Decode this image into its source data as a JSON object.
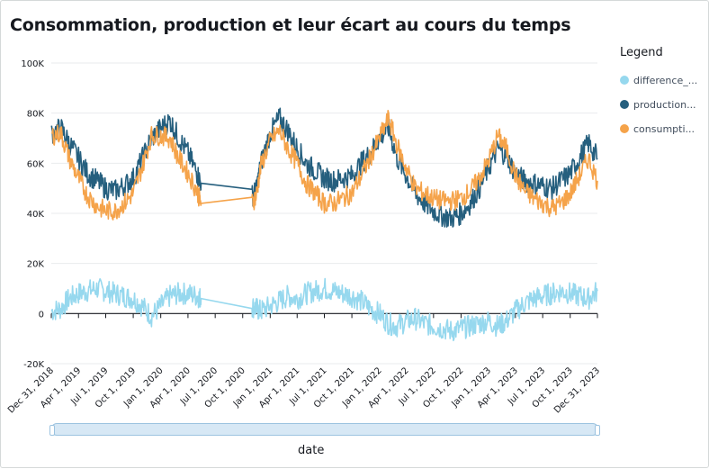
{
  "chart_data": {
    "type": "line",
    "title": "Consommation, production et leur écart au cours du temps",
    "xlabel": "date",
    "ylabel": "",
    "ylim": [
      -20000,
      100000
    ],
    "yticks": [
      "100K",
      "80K",
      "60K",
      "40K",
      "20K",
      "0",
      "-20K"
    ],
    "ytick_values": [
      100000,
      80000,
      60000,
      40000,
      20000,
      0,
      -20000
    ],
    "x_range": [
      "2018-12-31",
      "2023-12-31"
    ],
    "xticks": [
      "Dec 31, 2018",
      "Apr 1, 2019",
      "Jul 1, 2019",
      "Oct 1, 2019",
      "Jan 1, 2020",
      "Apr 1, 2020",
      "Jul 1, 2020",
      "Oct 1, 2020",
      "Jan 1, 2021",
      "Apr 1, 2021",
      "Jul 1, 2021",
      "Oct 1, 2021",
      "Jan 1, 2022",
      "Apr 1, 2022",
      "Jul 1, 2022",
      "Oct 1, 2022",
      "Jan 1, 2023",
      "Apr 1, 2023",
      "Jul 1, 2023",
      "Oct 1, 2023",
      "Dec 31, 2023"
    ],
    "xtick_dates": [
      "2018-12-31",
      "2019-04-01",
      "2019-07-01",
      "2019-10-01",
      "2020-01-01",
      "2020-04-01",
      "2020-07-01",
      "2020-10-01",
      "2021-01-01",
      "2021-04-01",
      "2021-07-01",
      "2021-10-01",
      "2022-01-01",
      "2022-04-01",
      "2022-07-01",
      "2022-10-01",
      "2023-01-01",
      "2023-04-01",
      "2023-07-01",
      "2023-10-01",
      "2023-12-31"
    ],
    "grid": true,
    "legend_position": "right",
    "legend_title": "Legend",
    "series": [
      {
        "name": "difference_...",
        "color": "#96d8ee",
        "x": [
          "2019-01-01",
          "2019-02-01",
          "2019-03-01",
          "2019-04-01",
          "2019-05-01",
          "2019-06-01",
          "2019-07-01",
          "2019-08-01",
          "2019-09-01",
          "2019-10-01",
          "2019-11-01",
          "2019-12-01",
          "2020-01-01",
          "2020-02-01",
          "2020-03-01",
          "2020-04-01",
          "2020-05-01",
          "2020-05-15",
          "2020-11-01",
          "2020-11-15",
          "2020-12-01",
          "2021-01-01",
          "2021-02-01",
          "2021-03-01",
          "2021-04-01",
          "2021-05-01",
          "2021-06-01",
          "2021-07-01",
          "2021-08-01",
          "2021-09-01",
          "2021-10-01",
          "2021-11-01",
          "2021-12-01",
          "2022-01-01",
          "2022-02-01",
          "2022-03-01",
          "2022-04-01",
          "2022-05-01",
          "2022-06-01",
          "2022-07-01",
          "2022-08-01",
          "2022-09-01",
          "2022-10-01",
          "2022-11-01",
          "2022-12-01",
          "2023-01-01",
          "2023-02-01",
          "2023-03-01",
          "2023-04-01",
          "2023-05-01",
          "2023-06-01",
          "2023-07-01",
          "2023-08-01",
          "2023-09-01",
          "2023-10-01",
          "2023-11-01",
          "2023-12-01",
          "2023-12-31"
        ],
        "values": [
          1000,
          2000,
          6000,
          8000,
          9000,
          10000,
          9000,
          8000,
          7000,
          6000,
          3000,
          -1000,
          3000,
          7000,
          8000,
          8000,
          7000,
          6000,
          3000,
          2000,
          1000,
          3000,
          5000,
          7000,
          6000,
          8000,
          9000,
          10000,
          9000,
          8000,
          7000,
          5000,
          2000,
          0,
          -4000,
          -5000,
          -3000,
          -2000,
          -4000,
          -5000,
          -6000,
          -7000,
          -6000,
          -5000,
          -4000,
          -3000,
          -5000,
          -3000,
          1000,
          4000,
          6000,
          7000,
          8000,
          9000,
          8000,
          7000,
          6000,
          9000
        ]
      },
      {
        "name": "production...",
        "color": "#255f7e",
        "x": [
          "2019-01-01",
          "2019-02-01",
          "2019-03-01",
          "2019-04-01",
          "2019-05-01",
          "2019-06-01",
          "2019-07-01",
          "2019-08-01",
          "2019-09-01",
          "2019-10-01",
          "2019-11-01",
          "2019-12-01",
          "2020-01-01",
          "2020-02-01",
          "2020-03-01",
          "2020-04-01",
          "2020-05-01",
          "2020-05-15",
          "2020-11-01",
          "2020-11-15",
          "2020-12-01",
          "2021-01-01",
          "2021-02-01",
          "2021-03-01",
          "2021-04-01",
          "2021-05-01",
          "2021-06-01",
          "2021-07-01",
          "2021-08-01",
          "2021-09-01",
          "2021-10-01",
          "2021-11-01",
          "2021-12-01",
          "2022-01-01",
          "2022-02-01",
          "2022-03-01",
          "2022-04-01",
          "2022-05-01",
          "2022-06-01",
          "2022-07-01",
          "2022-08-01",
          "2022-09-01",
          "2022-10-01",
          "2022-11-01",
          "2022-12-01",
          "2023-01-01",
          "2023-02-01",
          "2023-03-01",
          "2023-04-01",
          "2023-05-01",
          "2023-06-01",
          "2023-07-01",
          "2023-08-01",
          "2023-09-01",
          "2023-10-01",
          "2023-11-01",
          "2023-12-01",
          "2023-12-31"
        ],
        "values": [
          72000,
          74000,
          68000,
          62000,
          56000,
          53000,
          50000,
          49000,
          51000,
          54000,
          62000,
          70000,
          74000,
          77000,
          70000,
          64000,
          56000,
          52000,
          47000,
          49000,
          60000,
          72000,
          78000,
          73000,
          66000,
          60000,
          57000,
          54000,
          53000,
          54000,
          55000,
          60000,
          64000,
          70000,
          74000,
          62000,
          55000,
          48000,
          44000,
          41000,
          39000,
          38000,
          40000,
          44000,
          50000,
          58000,
          66000,
          63000,
          56000,
          53000,
          52000,
          51000,
          50000,
          53000,
          56000,
          62000,
          68000,
          62000
        ]
      },
      {
        "name": "consumpti...",
        "color": "#f5a34a",
        "x": [
          "2019-01-01",
          "2019-02-01",
          "2019-03-01",
          "2019-04-01",
          "2019-05-01",
          "2019-06-01",
          "2019-07-01",
          "2019-08-01",
          "2019-09-01",
          "2019-10-01",
          "2019-11-01",
          "2019-12-01",
          "2020-01-01",
          "2020-02-01",
          "2020-03-01",
          "2020-04-01",
          "2020-05-01",
          "2020-05-15",
          "2020-11-01",
          "2020-11-15",
          "2020-12-01",
          "2021-01-01",
          "2021-02-01",
          "2021-03-01",
          "2021-04-01",
          "2021-05-01",
          "2021-06-01",
          "2021-07-01",
          "2021-08-01",
          "2021-09-01",
          "2021-10-01",
          "2021-11-01",
          "2021-12-01",
          "2022-01-01",
          "2022-02-01",
          "2022-03-01",
          "2022-04-01",
          "2022-05-01",
          "2022-06-01",
          "2022-07-01",
          "2022-08-01",
          "2022-09-01",
          "2022-10-01",
          "2022-11-01",
          "2022-12-01",
          "2023-01-01",
          "2023-02-01",
          "2023-03-01",
          "2023-04-01",
          "2023-05-01",
          "2023-06-01",
          "2023-07-01",
          "2023-08-01",
          "2023-09-01",
          "2023-10-01",
          "2023-11-01",
          "2023-12-01",
          "2023-12-31"
        ],
        "values": [
          71000,
          72000,
          62000,
          54000,
          47000,
          43000,
          41000,
          41000,
          44000,
          48000,
          59000,
          71000,
          71000,
          70000,
          62000,
          56000,
          49000,
          44000,
          44000,
          47000,
          59000,
          69000,
          73000,
          66000,
          60000,
          52000,
          48000,
          44000,
          44000,
          46000,
          48000,
          55000,
          62000,
          70000,
          78000,
          67000,
          58000,
          50000,
          48000,
          46000,
          45000,
          45000,
          46000,
          49000,
          54000,
          61000,
          71000,
          66000,
          55000,
          49000,
          46000,
          44000,
          42000,
          44000,
          48000,
          55000,
          62000,
          53000
        ]
      }
    ]
  },
  "legend": {
    "title": "Legend",
    "items": [
      {
        "label": "difference_...",
        "color": "#96d8ee"
      },
      {
        "label": "production...",
        "color": "#255f7e"
      },
      {
        "label": "consumpti...",
        "color": "#f5a34a"
      }
    ]
  }
}
